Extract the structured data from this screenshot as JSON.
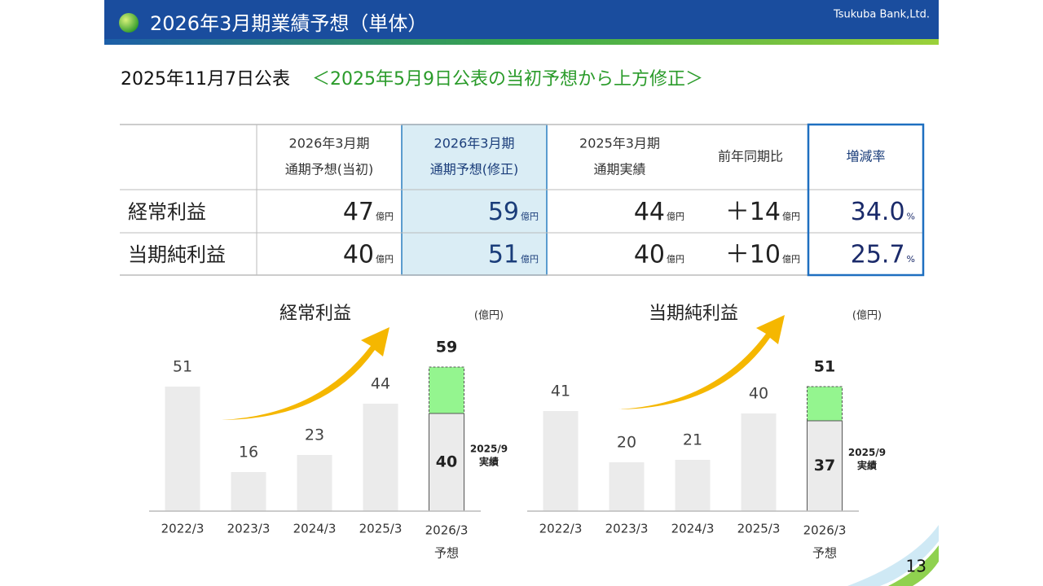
{
  "header": {
    "title": "2026年3月期業績予想（単体）",
    "company": "Tsukuba Bank,Ltd."
  },
  "announcement": {
    "date": "2025年11月7日公表",
    "note": "＜2025年5月9日公表の当初予想から上方修正＞"
  },
  "table": {
    "header": [
      [
        "2026年3月期",
        "通期予想(当初)"
      ],
      [
        "2026年3月期",
        "通期予想(修正)"
      ],
      [
        "2025年3月期",
        "通期実績"
      ],
      [
        "前年同期比"
      ],
      [
        "増減率"
      ]
    ],
    "rows": [
      {
        "label": "経常利益",
        "cells": [
          {
            "value": "47",
            "unit": "億円"
          },
          {
            "value": "59",
            "unit": "億円"
          },
          {
            "value": "44",
            "unit": "億円"
          },
          {
            "value": "＋14",
            "unit": "億円"
          },
          {
            "value": "34.0",
            "unit": "%"
          }
        ]
      },
      {
        "label": "当期純利益",
        "cells": [
          {
            "value": "40",
            "unit": "億円"
          },
          {
            "value": "51",
            "unit": "億円"
          },
          {
            "value": "40",
            "unit": "億円"
          },
          {
            "value": "＋10",
            "unit": "億円"
          },
          {
            "value": "25.7",
            "unit": "%"
          }
        ]
      }
    ]
  },
  "chart_data": [
    {
      "type": "bar",
      "title": "経常利益",
      "unit": "(億円)",
      "categories": [
        "2022/3",
        "2023/3",
        "2024/3",
        "2025/3",
        "2026/3"
      ],
      "forecast_label": "予想",
      "values": [
        51,
        16,
        23,
        44,
        59
      ],
      "actual": 40,
      "actual_label": [
        "2025/9",
        "実績"
      ],
      "color": "#ebebeb",
      "forecast_color": "#94f58f"
    },
    {
      "type": "bar",
      "title": "当期純利益",
      "unit": "(億円)",
      "categories": [
        "2022/3",
        "2023/3",
        "2024/3",
        "2025/3",
        "2026/3"
      ],
      "forecast_label": "予想",
      "values": [
        41,
        20,
        21,
        40,
        51
      ],
      "actual": 37,
      "actual_label": [
        "2025/9",
        "実績"
      ],
      "color": "#ebebeb",
      "forecast_color": "#94f58f"
    }
  ],
  "page_number": "13"
}
